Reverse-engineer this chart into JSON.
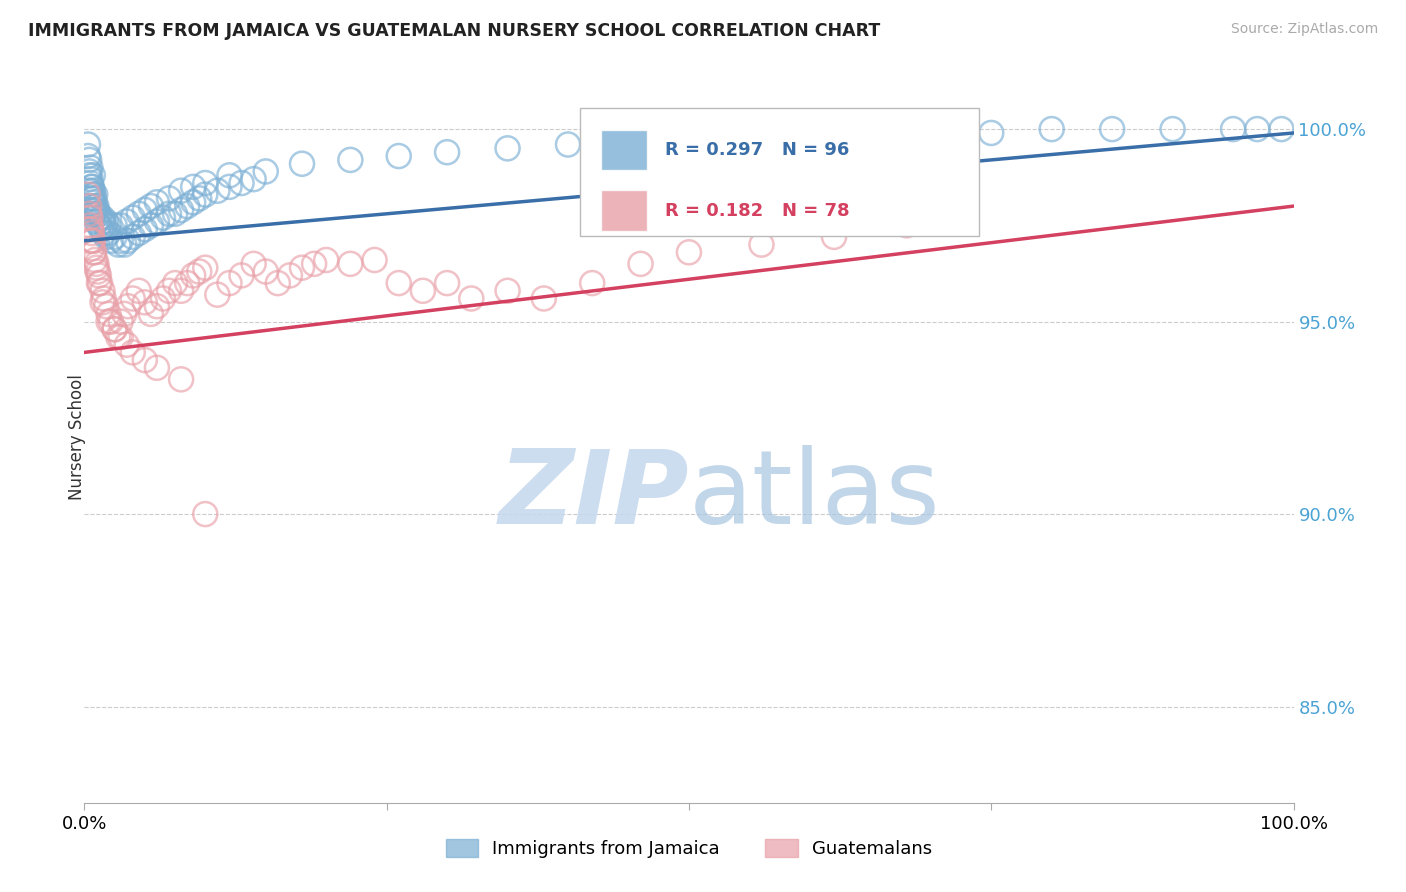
{
  "title": "IMMIGRANTS FROM JAMAICA VS GUATEMALAN NURSERY SCHOOL CORRELATION CHART",
  "source": "Source: ZipAtlas.com",
  "ylabel": "Nursery School",
  "ytick_labels": [
    "85.0%",
    "90.0%",
    "95.0%",
    "100.0%"
  ],
  "ytick_values": [
    0.85,
    0.9,
    0.95,
    1.0
  ],
  "xlim": [
    0.0,
    1.0
  ],
  "ylim": [
    0.825,
    1.015
  ],
  "legend_blue_label": "Immigrants from Jamaica",
  "legend_pink_label": "Guatemalans",
  "R_blue": 0.297,
  "N_blue": 96,
  "R_pink": 0.182,
  "N_pink": 78,
  "blue_color": "#7bafd4",
  "pink_color": "#e8a0a8",
  "blue_line_color": "#3a6ea8",
  "pink_line_color": "#d44060",
  "watermark_zip_color": "#c5d8ee",
  "watermark_atlas_color": "#a8c5e0",
  "blue_trend_x0": 0.0,
  "blue_trend_y0": 0.971,
  "blue_trend_x1": 1.0,
  "blue_trend_y1": 0.999,
  "pink_trend_x0": 0.0,
  "pink_trend_y0": 0.942,
  "pink_trend_x1": 1.0,
  "pink_trend_y1": 0.98,
  "blue_points_x": [
    0.004,
    0.004,
    0.004,
    0.004,
    0.005,
    0.005,
    0.005,
    0.006,
    0.006,
    0.007,
    0.007,
    0.007,
    0.008,
    0.008,
    0.009,
    0.009,
    0.01,
    0.01,
    0.011,
    0.012,
    0.013,
    0.014,
    0.015,
    0.016,
    0.017,
    0.018,
    0.02,
    0.022,
    0.025,
    0.028,
    0.03,
    0.033,
    0.036,
    0.04,
    0.045,
    0.05,
    0.055,
    0.06,
    0.065,
    0.07,
    0.075,
    0.08,
    0.085,
    0.09,
    0.095,
    0.1,
    0.11,
    0.12,
    0.13,
    0.14,
    0.003,
    0.003,
    0.004,
    0.005,
    0.006,
    0.007,
    0.008,
    0.009,
    0.01,
    0.012,
    0.015,
    0.018,
    0.02,
    0.025,
    0.03,
    0.035,
    0.04,
    0.045,
    0.05,
    0.055,
    0.06,
    0.07,
    0.08,
    0.09,
    0.1,
    0.12,
    0.15,
    0.18,
    0.22,
    0.26,
    0.3,
    0.35,
    0.4,
    0.45,
    0.5,
    0.55,
    0.6,
    0.65,
    0.7,
    0.75,
    0.8,
    0.85,
    0.9,
    0.95,
    0.97,
    0.99
  ],
  "blue_points_y": [
    0.992,
    0.988,
    0.984,
    0.98,
    0.99,
    0.986,
    0.978,
    0.985,
    0.982,
    0.988,
    0.984,
    0.979,
    0.982,
    0.978,
    0.983,
    0.979,
    0.98,
    0.976,
    0.978,
    0.975,
    0.977,
    0.974,
    0.976,
    0.973,
    0.975,
    0.972,
    0.973,
    0.971,
    0.972,
    0.97,
    0.971,
    0.97,
    0.971,
    0.972,
    0.973,
    0.974,
    0.975,
    0.976,
    0.977,
    0.978,
    0.978,
    0.979,
    0.98,
    0.981,
    0.982,
    0.983,
    0.984,
    0.985,
    0.986,
    0.987,
    0.996,
    0.993,
    0.989,
    0.987,
    0.985,
    0.983,
    0.981,
    0.98,
    0.979,
    0.978,
    0.977,
    0.976,
    0.975,
    0.975,
    0.975,
    0.976,
    0.977,
    0.978,
    0.979,
    0.98,
    0.981,
    0.982,
    0.984,
    0.985,
    0.986,
    0.988,
    0.989,
    0.991,
    0.992,
    0.993,
    0.994,
    0.995,
    0.996,
    0.997,
    0.997,
    0.998,
    0.998,
    0.999,
    0.999,
    0.999,
    1.0,
    1.0,
    1.0,
    1.0,
    1.0,
    1.0
  ],
  "pink_points_x": [
    0.004,
    0.004,
    0.005,
    0.005,
    0.006,
    0.006,
    0.007,
    0.008,
    0.009,
    0.01,
    0.011,
    0.012,
    0.013,
    0.015,
    0.016,
    0.018,
    0.02,
    0.022,
    0.025,
    0.028,
    0.03,
    0.033,
    0.036,
    0.04,
    0.045,
    0.05,
    0.055,
    0.06,
    0.065,
    0.07,
    0.075,
    0.08,
    0.085,
    0.09,
    0.095,
    0.1,
    0.11,
    0.12,
    0.13,
    0.14,
    0.15,
    0.16,
    0.17,
    0.18,
    0.19,
    0.2,
    0.22,
    0.24,
    0.26,
    0.28,
    0.3,
    0.32,
    0.35,
    0.38,
    0.42,
    0.46,
    0.5,
    0.56,
    0.62,
    0.68,
    0.003,
    0.004,
    0.005,
    0.006,
    0.007,
    0.008,
    0.01,
    0.012,
    0.015,
    0.02,
    0.025,
    0.03,
    0.035,
    0.04,
    0.05,
    0.06,
    0.08,
    0.1
  ],
  "pink_points_y": [
    0.978,
    0.974,
    0.975,
    0.971,
    0.973,
    0.969,
    0.971,
    0.968,
    0.966,
    0.965,
    0.963,
    0.962,
    0.96,
    0.958,
    0.956,
    0.954,
    0.952,
    0.95,
    0.948,
    0.946,
    0.95,
    0.952,
    0.954,
    0.956,
    0.958,
    0.955,
    0.952,
    0.954,
    0.956,
    0.958,
    0.96,
    0.958,
    0.96,
    0.962,
    0.963,
    0.964,
    0.957,
    0.96,
    0.962,
    0.965,
    0.963,
    0.96,
    0.962,
    0.964,
    0.965,
    0.966,
    0.965,
    0.966,
    0.96,
    0.958,
    0.96,
    0.956,
    0.958,
    0.956,
    0.96,
    0.965,
    0.968,
    0.97,
    0.972,
    0.975,
    0.983,
    0.98,
    0.977,
    0.974,
    0.971,
    0.968,
    0.964,
    0.96,
    0.955,
    0.95,
    0.948,
    0.946,
    0.944,
    0.942,
    0.94,
    0.938,
    0.935,
    0.9
  ]
}
